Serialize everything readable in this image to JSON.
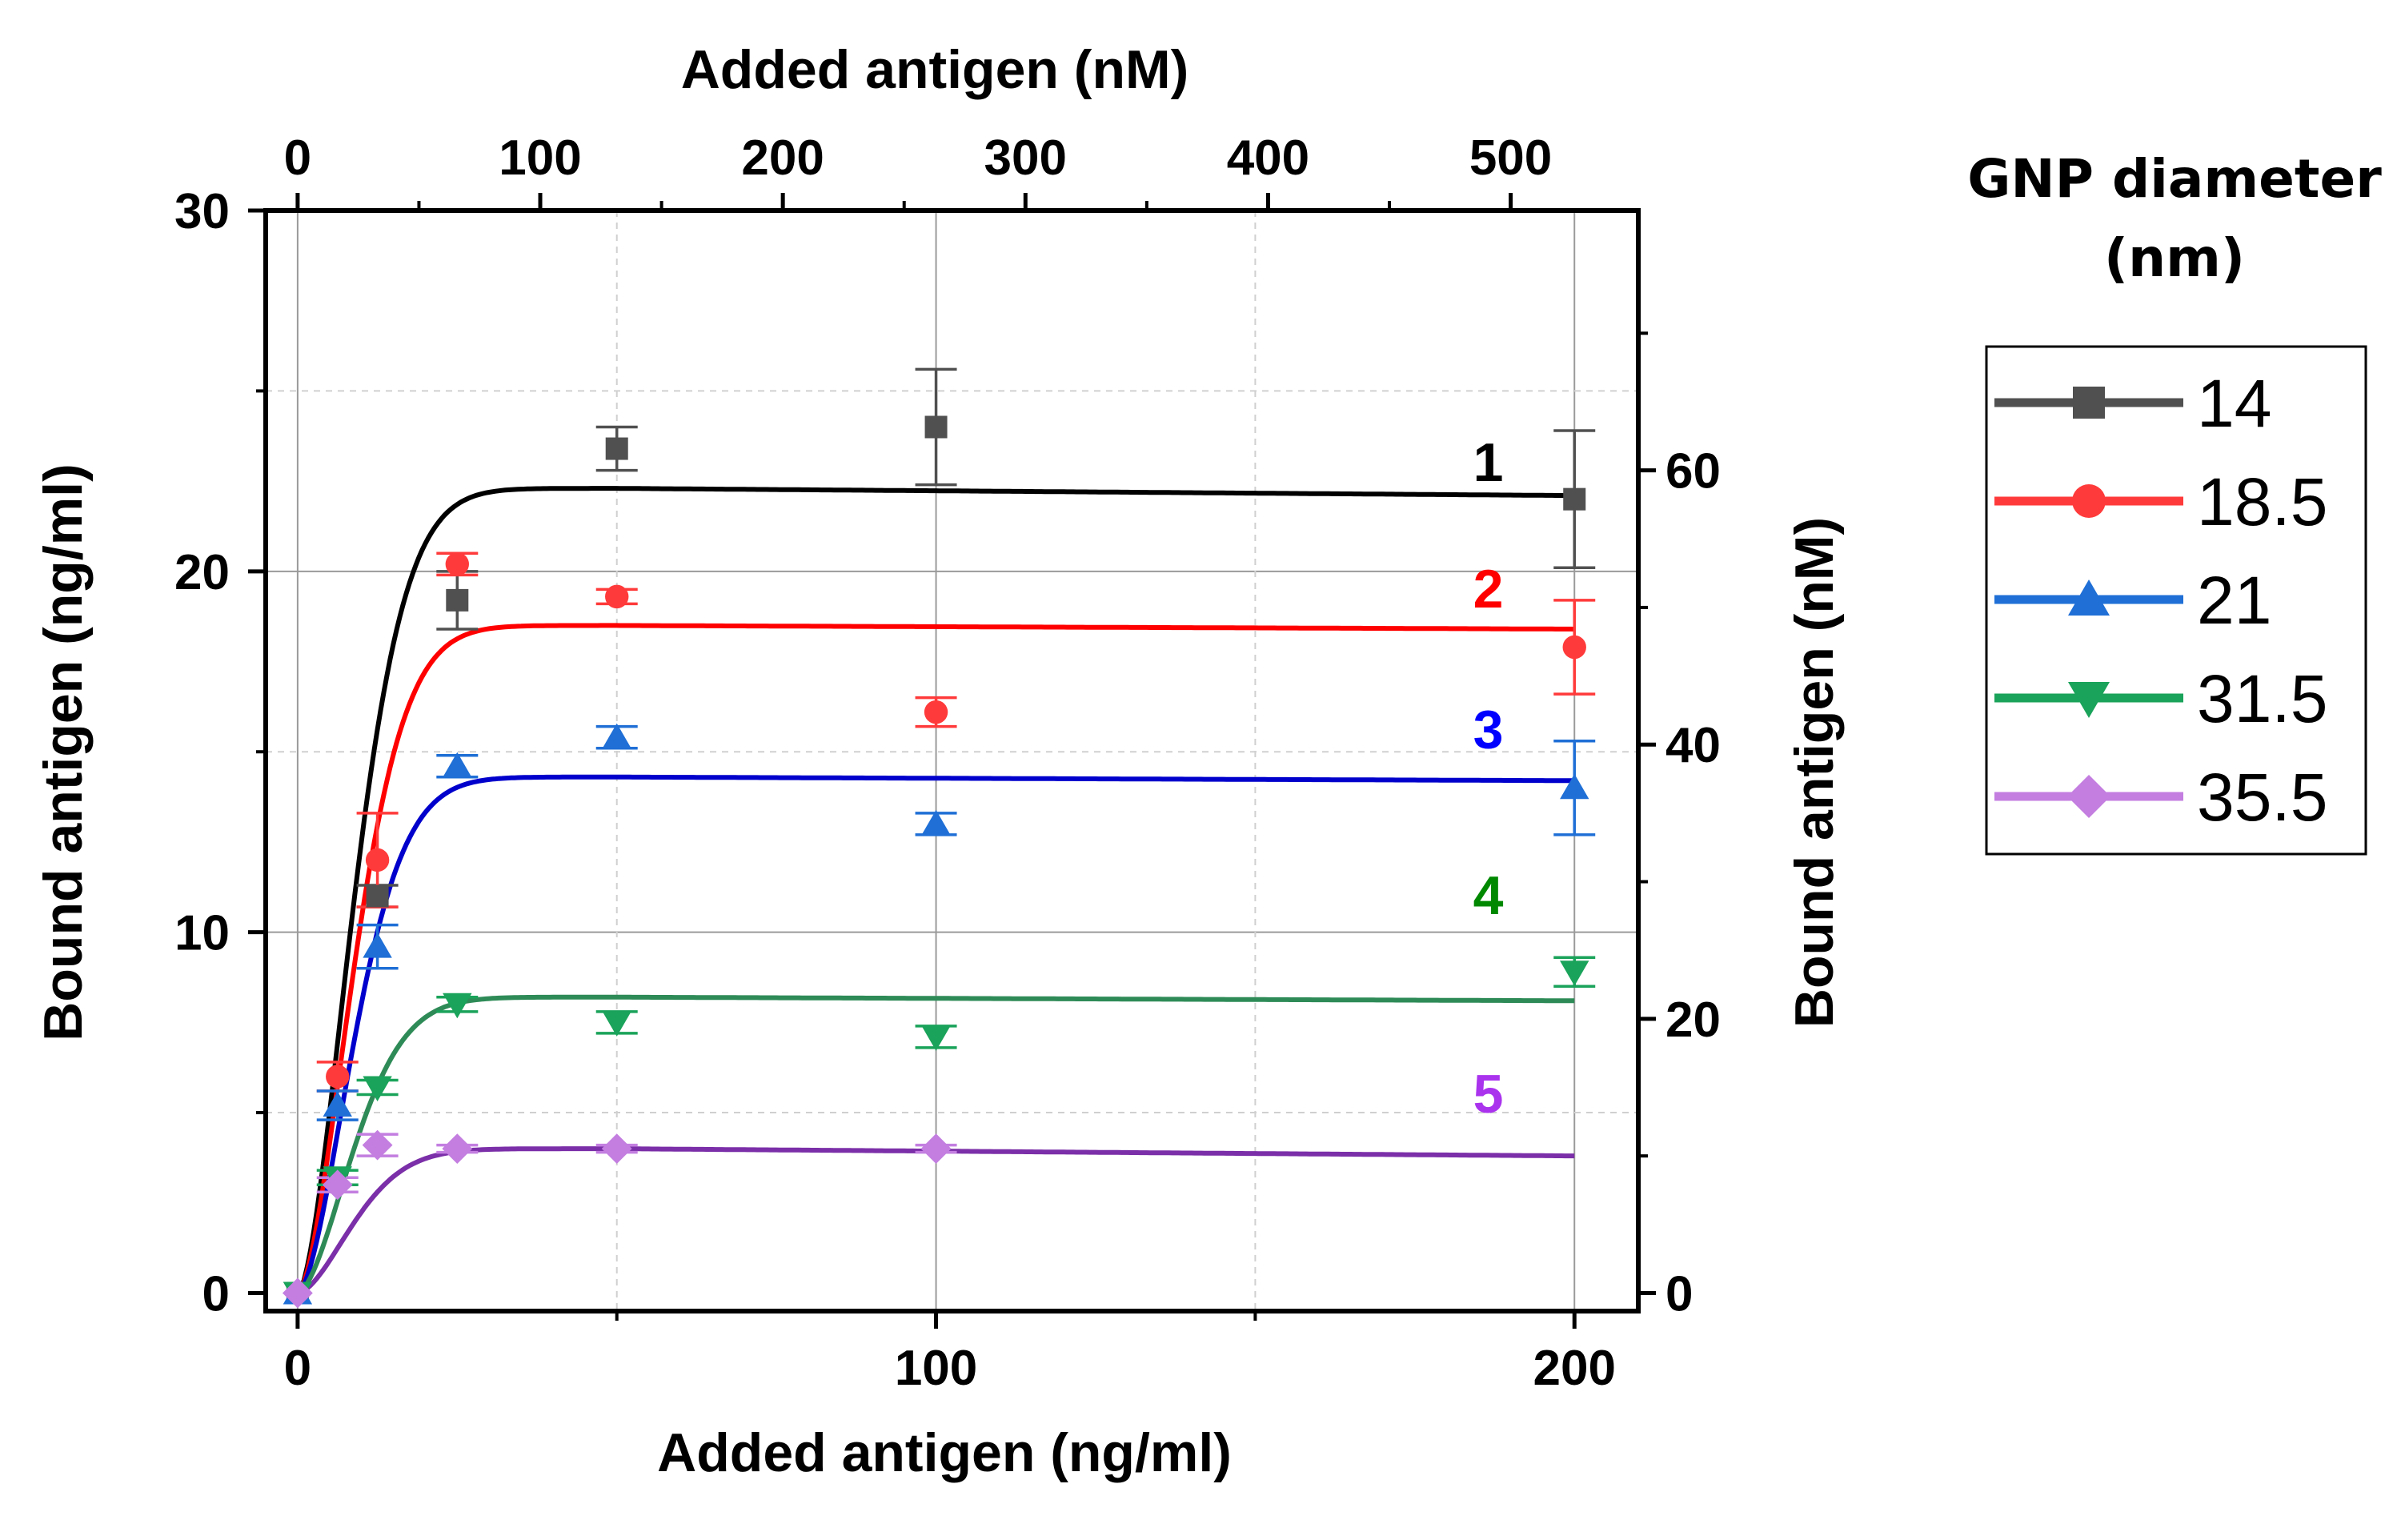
{
  "chart_data": {
    "type": "scatter",
    "x_bottom_label": "Added antigen (ng/ml)",
    "x_top_label": "Added antigen (nM)",
    "y_left_label": "Bound antigen (ng/ml)",
    "y_right_label": "Bound antigen (nM)",
    "x_bottom_range": [
      -5,
      210
    ],
    "x_top_range": [
      -13.16,
      552.6
    ],
    "y_left_range": [
      -0.5,
      30
    ],
    "y_right_range": [
      -1.316,
      78.95
    ],
    "x_bottom_ticks": [
      "0",
      "100",
      "200"
    ],
    "x_top_ticks": [
      "0",
      "100",
      "200",
      "300",
      "400",
      "500"
    ],
    "y_left_ticks": [
      "0",
      "10",
      "20",
      "30"
    ],
    "y_right_ticks": [
      "0",
      "20",
      "40",
      "60"
    ],
    "grid": true,
    "legend": {
      "title_line1": "GNP diameter",
      "title_line2": "(nm)",
      "position": "right"
    },
    "series": [
      {
        "name": "14",
        "curve_label": "1",
        "marker": "square",
        "marker_color": "#505050",
        "curve_color": "#000000",
        "label_color": "#000000",
        "x": [
          0,
          12.5,
          25,
          50,
          100,
          200
        ],
        "y": [
          0,
          11.0,
          19.2,
          23.4,
          24.0,
          22.0
        ],
        "err": [
          0,
          0.3,
          0.8,
          0.6,
          1.6,
          1.9
        ],
        "fit_plateau": 22.3,
        "fit_end": 22.1
      },
      {
        "name": "18.5",
        "curve_label": "2",
        "marker": "circle",
        "marker_color": "#ff3a3a",
        "curve_color": "#ff0000",
        "label_color": "#ff0000",
        "x": [
          0,
          6.25,
          12.5,
          25,
          50,
          100,
          200
        ],
        "y": [
          0,
          6.0,
          12.0,
          20.2,
          19.3,
          16.1,
          17.9
        ],
        "err": [
          0,
          0.4,
          1.3,
          0.3,
          0.2,
          0.4,
          1.3
        ],
        "fit_plateau": 18.5,
        "fit_end": 18.4
      },
      {
        "name": "21",
        "curve_label": "3",
        "marker": "triangle-up",
        "marker_color": "#1f6fd6",
        "curve_color": "#0000cc",
        "label_color": "#0000ff",
        "x": [
          0,
          6.25,
          12.5,
          25,
          50,
          100,
          200
        ],
        "y": [
          0,
          5.2,
          9.6,
          14.6,
          15.4,
          13.0,
          14.0
        ],
        "err": [
          0,
          0.4,
          0.6,
          0.3,
          0.3,
          0.3,
          1.3
        ],
        "fit_plateau": 14.3,
        "fit_end": 14.2
      },
      {
        "name": "31.5",
        "curve_label": "4",
        "marker": "triangle-down",
        "marker_color": "#1aa35a",
        "curve_color": "#2e8b57",
        "label_color": "#008800",
        "x": [
          0,
          6.25,
          12.5,
          25,
          50,
          100,
          200
        ],
        "y": [
          0,
          3.2,
          5.7,
          8.0,
          7.5,
          7.1,
          8.9
        ],
        "err": [
          0,
          0.2,
          0.2,
          0.2,
          0.3,
          0.3,
          0.4
        ],
        "fit_plateau": 8.2,
        "fit_end": 8.1
      },
      {
        "name": "35.5",
        "curve_label": "5",
        "marker": "diamond",
        "marker_color": "#c37ee0",
        "curve_color": "#7b2fa8",
        "label_color": "#aa33ee",
        "x": [
          0,
          6.25,
          12.5,
          25,
          50,
          100
        ],
        "y": [
          0,
          3.0,
          4.1,
          4.0,
          4.0,
          4.0
        ],
        "err": [
          0,
          0.2,
          0.3,
          0.1,
          0.1,
          0.1
        ],
        "fit_plateau": 4.0,
        "fit_end": 3.8
      }
    ]
  }
}
